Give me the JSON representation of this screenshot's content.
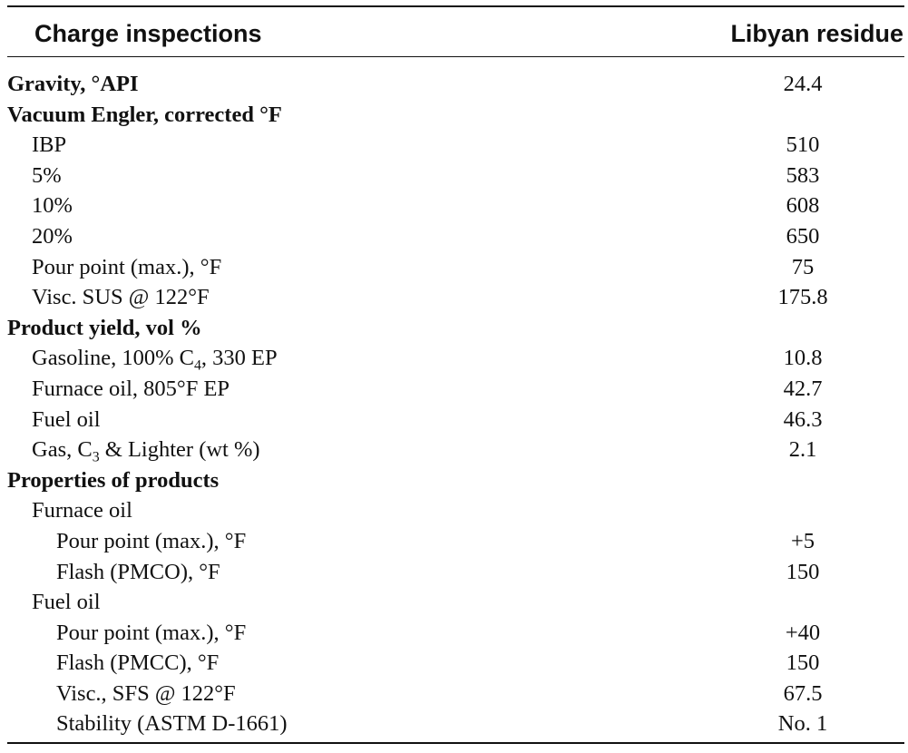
{
  "table": {
    "header": {
      "left": "Charge inspections",
      "right": "Libyan residue"
    },
    "rows": [
      {
        "level": 0,
        "label": "Gravity, °API",
        "value": "24.4"
      },
      {
        "level": 0,
        "label": "Vacuum Engler, corrected °F",
        "value": ""
      },
      {
        "level": 1,
        "label": "IBP",
        "value": "510"
      },
      {
        "level": 1,
        "label": "5%",
        "value": "583"
      },
      {
        "level": 1,
        "label": "10%",
        "value": "608"
      },
      {
        "level": 1,
        "label": "20%",
        "value": "650"
      },
      {
        "level": 1,
        "label": "Pour point (max.), °F",
        "value": "75"
      },
      {
        "level": 1,
        "label": "Visc. SUS @ 122°F",
        "value": "175.8"
      },
      {
        "level": 0,
        "label": "Product yield, vol %",
        "value": ""
      },
      {
        "level": 1,
        "label_pre": "Gasoline, 100% C",
        "label_sub": "4",
        "label_post": ", 330 EP",
        "value": "10.8"
      },
      {
        "level": 1,
        "label": "Furnace oil, 805°F EP",
        "value": "42.7"
      },
      {
        "level": 1,
        "label": "Fuel oil",
        "value": "46.3"
      },
      {
        "level": 1,
        "label_pre": "Gas, C",
        "label_sub": "3",
        "label_post": " & Lighter (wt %)",
        "value": "2.1"
      },
      {
        "level": 0,
        "label": "Properties of products",
        "value": ""
      },
      {
        "level": 1,
        "label": "Furnace oil",
        "value": ""
      },
      {
        "level": 2,
        "label": "Pour point (max.), °F",
        "value": "+5"
      },
      {
        "level": 2,
        "label": "Flash (PMCO), °F",
        "value": "150"
      },
      {
        "level": 1,
        "label": "Fuel oil",
        "value": ""
      },
      {
        "level": 2,
        "label": "Pour point (max.), °F",
        "value": "+40"
      },
      {
        "level": 2,
        "label": "Flash (PMCC), °F",
        "value": "150"
      },
      {
        "level": 2,
        "label": "Visc., SFS @ 122°F",
        "value": "67.5"
      },
      {
        "level": 2,
        "label": "Stability (ASTM D-1661)",
        "value": "No. 1"
      }
    ]
  }
}
